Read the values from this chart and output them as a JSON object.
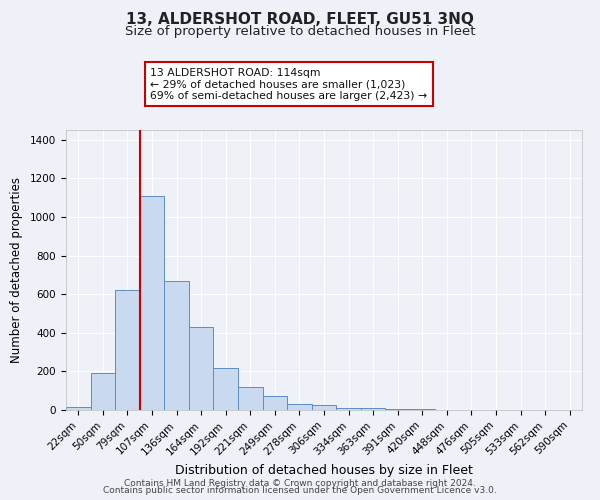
{
  "title1": "13, ALDERSHOT ROAD, FLEET, GU51 3NQ",
  "title2": "Size of property relative to detached houses in Fleet",
  "xlabel": "Distribution of detached houses by size in Fleet",
  "ylabel": "Number of detached properties",
  "bar_labels": [
    "22sqm",
    "50sqm",
    "79sqm",
    "107sqm",
    "136sqm",
    "164sqm",
    "192sqm",
    "221sqm",
    "249sqm",
    "278sqm",
    "306sqm",
    "334sqm",
    "363sqm",
    "391sqm",
    "420sqm",
    "448sqm",
    "476sqm",
    "505sqm",
    "533sqm",
    "562sqm",
    "590sqm"
  ],
  "bar_values": [
    15,
    190,
    620,
    1110,
    670,
    430,
    220,
    120,
    75,
    30,
    25,
    10,
    10,
    5,
    3,
    2,
    2,
    2,
    2,
    2,
    2
  ],
  "bar_color": "#c9d9f0",
  "bar_edgecolor": "#5b8ec4",
  "vline_x": 3.0,
  "vline_color": "#cc0000",
  "annotation_text": "13 ALDERSHOT ROAD: 114sqm\n← 29% of detached houses are smaller (1,023)\n69% of semi-detached houses are larger (2,423) →",
  "annotation_box_color": "#ffffff",
  "annotation_box_edgecolor": "#cc0000",
  "ylim": [
    0,
    1450
  ],
  "yticks": [
    0,
    200,
    400,
    600,
    800,
    1000,
    1200,
    1400
  ],
  "footer1": "Contains HM Land Registry data © Crown copyright and database right 2024.",
  "footer2": "Contains public sector information licensed under the Open Government Licence v3.0.",
  "bg_color": "#eef2f8",
  "grid_color": "#ffffff",
  "title1_fontsize": 11,
  "title2_fontsize": 9.5,
  "xlabel_fontsize": 9,
  "ylabel_fontsize": 8.5,
  "tick_fontsize": 7.5,
  "footer_fontsize": 6.5
}
